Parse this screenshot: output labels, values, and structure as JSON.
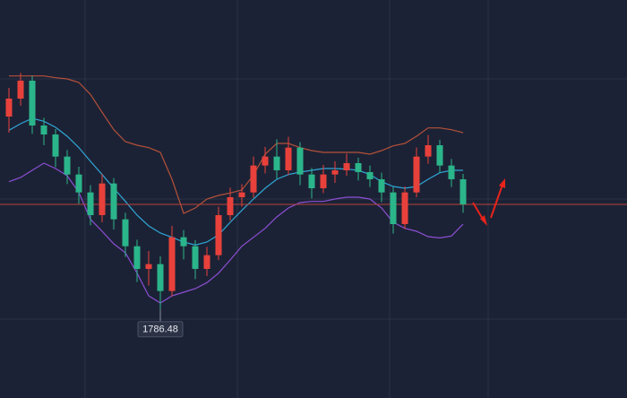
{
  "chart_data": {
    "type": "candlestick",
    "open": [
      1818.7,
      1821.7,
      1824.7,
      1817.2,
      1815.7,
      1812.0,
      1809.0,
      1806.0,
      1802.2,
      1807.5,
      1801.5,
      1797.0,
      1793.2,
      1794.0,
      1789.5,
      1798.5,
      1797.0,
      1793.2,
      1795.5,
      1802.2,
      1805.2,
      1806.0,
      1810.5,
      1812.0,
      1809.7,
      1813.5,
      1809.0,
      1806.7,
      1809.0,
      1809.7,
      1810.9,
      1809.4,
      1808.2,
      1806.0,
      1800.7,
      1806.0,
      1812.0,
      1813.9,
      1810.5,
      1808.2
    ],
    "high": [
      1823.5,
      1826.0,
      1825.5,
      1818.5,
      1816.6,
      1813.1,
      1810.3,
      1807.2,
      1809.1,
      1808.4,
      1802.6,
      1798.1,
      1796.2,
      1795.3,
      1800.4,
      1799.7,
      1798.0,
      1796.9,
      1803.6,
      1806.8,
      1807.4,
      1812.0,
      1813.6,
      1814.9,
      1815.3,
      1814.4,
      1810.1,
      1810.6,
      1811.2,
      1812.5,
      1811.8,
      1810.5,
      1809.3,
      1806.9,
      1807.0,
      1813.5,
      1815.6,
      1814.8,
      1811.6,
      1809.1
    ],
    "low": [
      1816.0,
      1820.5,
      1815.8,
      1813.9,
      1810.2,
      1807.4,
      1804.1,
      1800.5,
      1801.0,
      1799.8,
      1795.2,
      1791.0,
      1790.4,
      1786.48,
      1788.6,
      1794.8,
      1791.5,
      1792.0,
      1794.7,
      1801.3,
      1803.6,
      1805.1,
      1809.2,
      1808.3,
      1808.9,
      1807.2,
      1805.0,
      1805.9,
      1807.6,
      1808.8,
      1808.0,
      1806.9,
      1804.4,
      1799.1,
      1799.9,
      1805.2,
      1810.8,
      1809.3,
      1806.9,
      1802.6
    ],
    "close": [
      1821.7,
      1824.7,
      1817.2,
      1815.7,
      1812.0,
      1809.0,
      1806.0,
      1802.2,
      1807.5,
      1801.5,
      1797.0,
      1793.2,
      1794.0,
      1789.5,
      1798.5,
      1797.0,
      1793.2,
      1795.5,
      1802.2,
      1805.2,
      1806.0,
      1810.5,
      1812.0,
      1809.7,
      1813.5,
      1809.0,
      1806.7,
      1809.0,
      1809.7,
      1810.9,
      1809.4,
      1808.2,
      1806.0,
      1800.7,
      1806.0,
      1812.0,
      1813.9,
      1810.5,
      1808.2,
      1804.0
    ],
    "up_color": "#e8413c",
    "down_color": "#2bb58a",
    "ylim": [
      1771.6,
      1838.2
    ],
    "overlays": [
      {
        "color": "#b4513a",
        "values": [
          1825.5,
          1825.5,
          1825.5,
          1825.5,
          1825.2,
          1825.0,
          1824.4,
          1822.4,
          1819.4,
          1816.5,
          1814.5,
          1813.9,
          1813.5,
          1812.7,
          1808.2,
          1802.5,
          1803.4,
          1804.9,
          1805.5,
          1805.9,
          1806.4,
          1808.9,
          1812.4,
          1814.2,
          1814.2,
          1813.5,
          1813.0,
          1812.7,
          1812.7,
          1812.7,
          1812.7,
          1812.4,
          1813.0,
          1813.8,
          1814.2,
          1815.4,
          1816.8,
          1816.8,
          1816.5,
          1816.0
        ]
      },
      {
        "color": "#8c4fd6",
        "values": [
          1807.8,
          1808.5,
          1809.7,
          1810.9,
          1810.0,
          1808.8,
          1806.0,
          1801.5,
          1799.5,
          1797.4,
          1795.9,
          1792.5,
          1788.7,
          1787.5,
          1788.7,
          1789.3,
          1789.9,
          1790.9,
          1792.5,
          1794.7,
          1797.0,
          1798.5,
          1800.0,
          1801.9,
          1803.4,
          1804.3,
          1804.5,
          1804.5,
          1804.9,
          1805.2,
          1805.2,
          1804.9,
          1803.4,
          1801.0,
          1800.0,
          1799.5,
          1798.6,
          1798.4,
          1798.7,
          1800.7
        ]
      },
      {
        "color": "#2fa6d6",
        "values": [
          1816.4,
          1817.5,
          1818.4,
          1817.9,
          1816.9,
          1815.4,
          1813.5,
          1811.2,
          1809.0,
          1806.7,
          1804.5,
          1802.2,
          1800.4,
          1799.2,
          1798.5,
          1797.7,
          1797.2,
          1797.7,
          1798.9,
          1801.0,
          1803.0,
          1804.9,
          1806.7,
          1808.2,
          1809.0,
          1809.4,
          1809.7,
          1810.0,
          1810.0,
          1809.9,
          1809.7,
          1809.0,
          1807.8,
          1807.0,
          1806.7,
          1807.0,
          1808.2,
          1809.3,
          1809.7,
          1809.7
        ]
      }
    ]
  }
}
